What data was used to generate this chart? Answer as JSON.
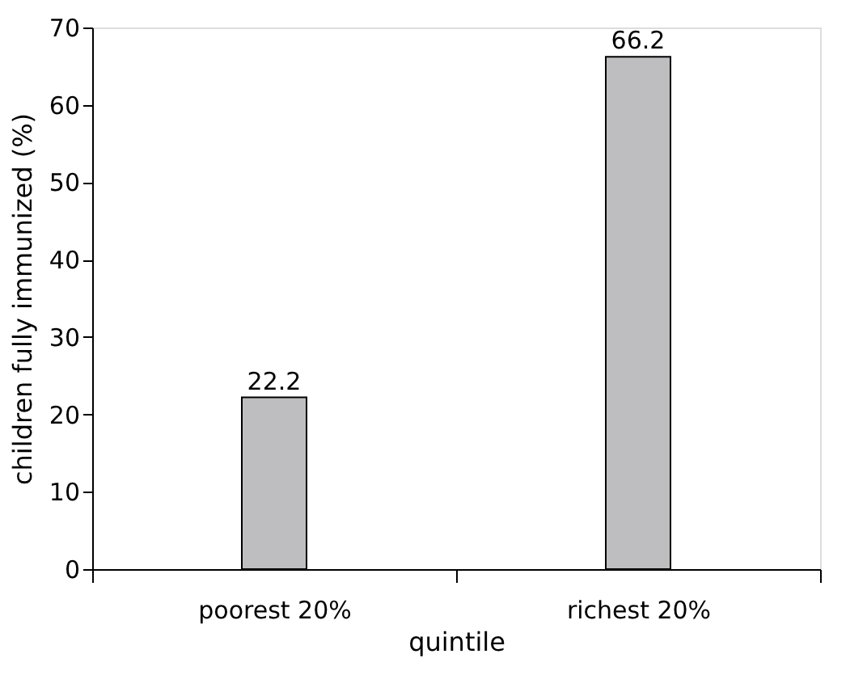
{
  "chart_data": {
    "type": "bar",
    "xlabel": "quintile",
    "ylabel": "children fully immunized (%)",
    "categories": [
      "poorest 20%",
      "richest 20%"
    ],
    "series": [
      {
        "color": "#bebec0",
        "values": [
          22.2,
          66.2
        ]
      }
    ],
    "ylim": [
      0,
      70
    ],
    "yticks": [
      0,
      10,
      20,
      30,
      40,
      50,
      60,
      70
    ],
    "data_labels": true,
    "grid": false,
    "legend": false
  }
}
